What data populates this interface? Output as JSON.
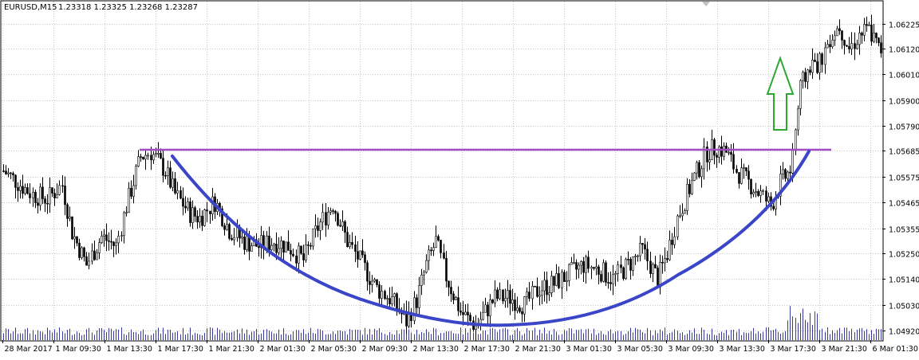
{
  "header": {
    "symbol": "EURUSD,M15",
    "ohlc": "1.23318 1.23325 1.23268 1.23287"
  },
  "colors": {
    "background": "#ffffff",
    "grid": "#c8c8c8",
    "candle": "#000000",
    "volume": "#3a3aa0",
    "resistance": "#a24bc2",
    "cup": "#3a45c8",
    "arrow": "#2da832"
  },
  "annotations": {
    "arrow_icon": "up-arrow-icon",
    "resistance_price": 1.057,
    "resistance_start": "1 Mar 15:00",
    "resistance_end": "3 Mar 19:30"
  },
  "chart_data": {
    "type": "candlestick",
    "ylim": [
      1.0488,
      1.0632
    ],
    "yticks": [
      "1.06225",
      "1.06120",
      "1.06010",
      "1.05900",
      "1.05790",
      "1.05685",
      "1.05575",
      "1.05465",
      "1.05355",
      "1.05250",
      "1.05140",
      "1.05030",
      "1.04920"
    ],
    "xticks": [
      "28 Mar 2017",
      "1 Mar 09:30",
      "1 Mar 13:30",
      "1 Mar 17:30",
      "1 Mar 21:30",
      "2 Mar 01:30",
      "2 Mar 05:30",
      "2 Mar 09:30",
      "2 Mar 13:30",
      "2 Mar 17:30",
      "2 Mar 21:30",
      "3 Mar 01:30",
      "3 Mar 05:30",
      "3 Mar 09:30",
      "3 Mar 13:30",
      "3 Mar 17:30",
      "3 Mar 21:30",
      "6 Mar 01:30"
    ],
    "close_path": [
      [
        0,
        1.056
      ],
      [
        6,
        1.0555
      ],
      [
        12,
        1.055
      ],
      [
        18,
        1.0548
      ],
      [
        24,
        1.0554
      ],
      [
        28,
        1.0534
      ],
      [
        34,
        1.052
      ],
      [
        40,
        1.0532
      ],
      [
        46,
        1.0528
      ],
      [
        50,
        1.0545
      ],
      [
        56,
        1.0566
      ],
      [
        60,
        1.0568
      ],
      [
        66,
        1.056
      ],
      [
        70,
        1.055
      ],
      [
        76,
        1.0542
      ],
      [
        80,
        1.054
      ],
      [
        86,
        1.0547
      ],
      [
        92,
        1.0535
      ],
      [
        98,
        1.053
      ],
      [
        104,
        1.0528
      ],
      [
        110,
        1.053
      ],
      [
        116,
        1.0528
      ],
      [
        122,
        1.0522
      ],
      [
        128,
        1.0536
      ],
      [
        134,
        1.0546
      ],
      [
        140,
        1.053
      ],
      [
        146,
        1.052
      ],
      [
        152,
        1.051
      ],
      [
        158,
        1.0505
      ],
      [
        164,
        1.0496
      ],
      [
        168,
        1.0505
      ],
      [
        172,
        1.052
      ],
      [
        176,
        1.053
      ],
      [
        180,
        1.0515
      ],
      [
        186,
        1.05
      ],
      [
        192,
        1.0494
      ],
      [
        196,
        1.05
      ],
      [
        200,
        1.0506
      ],
      [
        206,
        1.0506
      ],
      [
        212,
        1.0503
      ],
      [
        218,
        1.051
      ],
      [
        224,
        1.0512
      ],
      [
        230,
        1.0516
      ],
      [
        236,
        1.052
      ],
      [
        242,
        1.0518
      ],
      [
        248,
        1.0514
      ],
      [
        254,
        1.052
      ],
      [
        260,
        1.0526
      ],
      [
        266,
        1.0514
      ],
      [
        270,
        1.0525
      ],
      [
        274,
        1.054
      ],
      [
        280,
        1.0555
      ],
      [
        286,
        1.0568
      ],
      [
        290,
        1.057
      ],
      [
        294,
        1.0568
      ],
      [
        298,
        1.056
      ],
      [
        304,
        1.0554
      ],
      [
        308,
        1.055
      ],
      [
        312,
        1.0545
      ],
      [
        316,
        1.0555
      ],
      [
        320,
        1.056
      ],
      [
        324,
        1.0595
      ],
      [
        328,
        1.0605
      ],
      [
        332,
        1.0606
      ],
      [
        336,
        1.0617
      ],
      [
        340,
        1.0622
      ],
      [
        344,
        1.0612
      ],
      [
        348,
        1.0618
      ],
      [
        352,
        1.062
      ],
      [
        356,
        1.0612
      ],
      [
        358,
        1.0611
      ]
    ],
    "bar_count": 358
  }
}
